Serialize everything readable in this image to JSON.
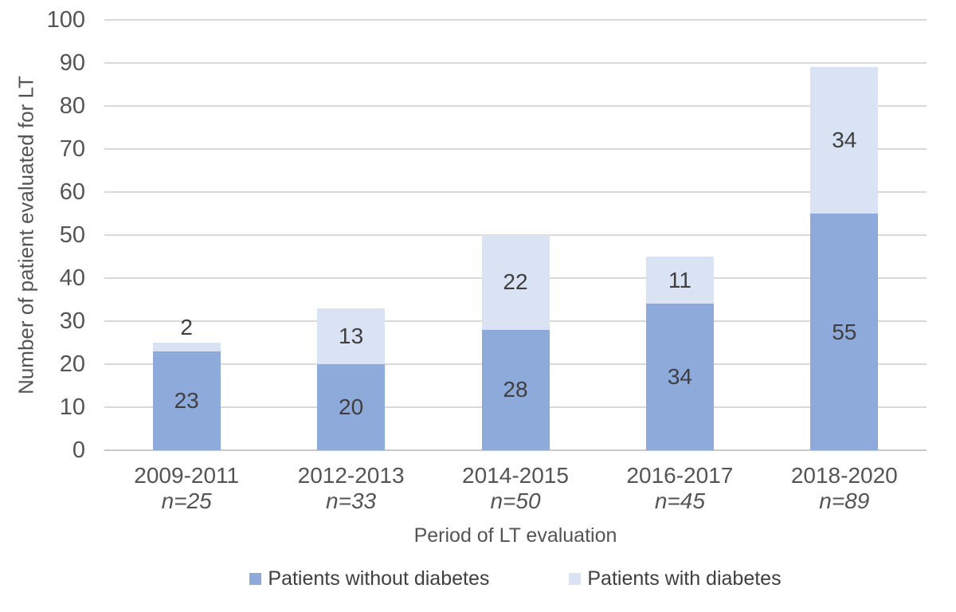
{
  "chart_data": {
    "type": "bar",
    "stacked": true,
    "title": "",
    "xlabel": "Period of LT evaluation",
    "ylabel": "Number of patient evaluated for LT",
    "ylim": [
      0,
      100
    ],
    "ytick_interval": 10,
    "yticks": [
      0,
      10,
      20,
      30,
      40,
      50,
      60,
      70,
      80,
      90,
      100
    ],
    "grid": true,
    "legend_position": "bottom",
    "categories": [
      "2009-2011",
      "2012-2013",
      "2014-2015",
      "2016-2017",
      "2018-2020"
    ],
    "category_sublabels": [
      "n=25",
      "n=33",
      "n=50",
      "n=45",
      "n=89"
    ],
    "totals": [
      25,
      33,
      50,
      45,
      89
    ],
    "series": [
      {
        "name": "Patients without diabetes",
        "color": "#8EAADB",
        "values": [
          23,
          20,
          28,
          34,
          55
        ]
      },
      {
        "name": "Patients with diabetes",
        "color": "#DAE3F3",
        "values": [
          2,
          13,
          22,
          11,
          34
        ]
      }
    ],
    "colors": {
      "background": "#FFFFFF",
      "gridline": "#D9D9D9",
      "axis_line": "#C9C9C9",
      "axis_text": "#545454",
      "data_label": "#3F3F3F"
    }
  }
}
